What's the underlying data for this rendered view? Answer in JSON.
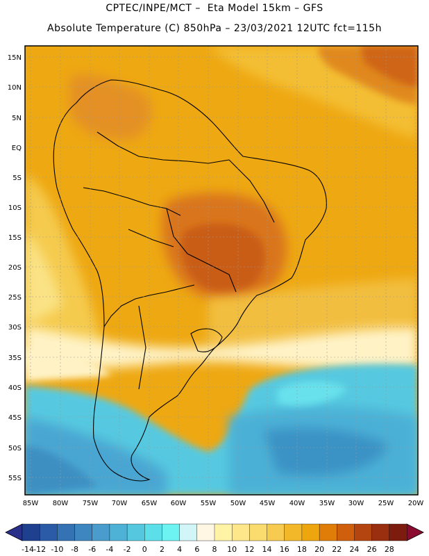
{
  "header": {
    "line1": "CPTEC/INPE/MCT –  Eta Model 15km – GFS",
    "line2": "Absolute Temperature (C) 850hPa – 23/03/2021 12UTC fct=115h"
  },
  "axes": {
    "lat_labels": [
      "15N",
      "10N",
      "5N",
      "EQ",
      "5S",
      "10S",
      "15S",
      "20S",
      "25S",
      "30S",
      "35S",
      "40S",
      "45S",
      "50S",
      "55S"
    ],
    "lon_labels": [
      "85W",
      "80W",
      "75W",
      "70W",
      "65W",
      "60W",
      "55W",
      "50W",
      "45W",
      "40W",
      "35W",
      "30W",
      "25W",
      "20W"
    ]
  },
  "colorbar": {
    "labels": [
      "-14",
      "-12",
      "-10",
      "-8",
      "-6",
      "-4",
      "-2",
      "0",
      "2",
      "4",
      "6",
      "8",
      "10",
      "12",
      "14",
      "16",
      "18",
      "20",
      "22",
      "24",
      "26",
      "28"
    ],
    "colors": [
      "#1f3f8f",
      "#2b5aa6",
      "#3472b4",
      "#3d86c0",
      "#4a9ccc",
      "#4eb2d6",
      "#55c8df",
      "#5cdfe8",
      "#6ef3f3",
      "#d2f5f7",
      "#fff7e3",
      "#fff4a6",
      "#fde78a",
      "#fadb6e",
      "#f6cb4f",
      "#f3b829",
      "#eea60f",
      "#e07d09",
      "#d05f0d",
      "#b44510",
      "#9a2f10",
      "#7c1c0f"
    ],
    "under_color": "#2a2f8a",
    "over_color": "#8a0a30"
  },
  "map_regions": {
    "ocean_warm": "#f0aa1a",
    "land_warm": "#eda313",
    "hot_core": "#d7701c",
    "hottest": "#c85a12",
    "mild": "#f5c84a",
    "cool": "#fff3c0",
    "coldest": "#3b9ccb"
  }
}
